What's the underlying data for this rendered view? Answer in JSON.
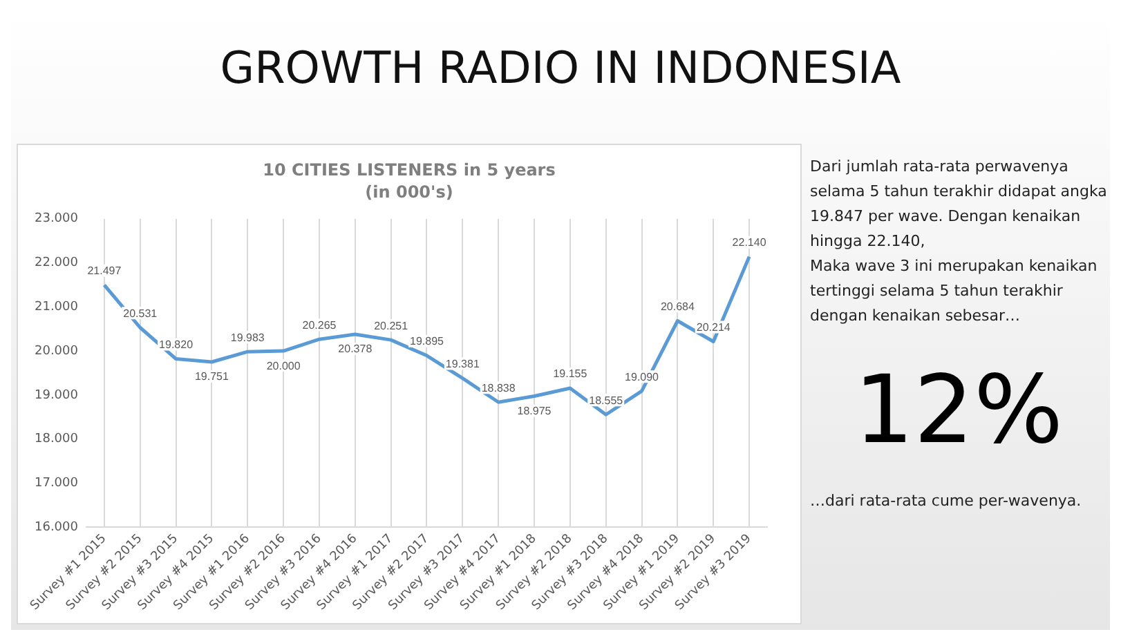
{
  "chart_data": {
    "type": "line",
    "title": "GROWTH RADIO IN INDONESIA",
    "subtitle": "10 CITIES LISTENERS in 5 years",
    "categories": [
      "Survey #1 2015",
      "Survey #2 2015",
      "Survey #3 2015",
      "Survey #4 2015",
      "Survey #1 2016",
      "Survey #2 2016",
      "Survey #3 2016",
      "Survey #4 2016",
      "Survey #1 2017",
      "Survey #2 2017",
      "Survey #3 2017",
      "Survey #4 2017",
      "Survey #1 2018",
      "Survey #2 2018",
      "Survey #3 2018",
      "Survey #4 2018",
      "Survey #1 2019",
      "Survey #2 2019",
      "Survey #3 2019"
    ],
    "series": [
      {
        "color": "#5b9bd5",
        "values": [
          21497,
          20531,
          19820,
          19751,
          19983,
          20000,
          20265,
          20378,
          20251,
          19895,
          19381,
          18838,
          18975,
          19155,
          18555,
          19090,
          20684,
          20214,
          22140
        ],
        "value_labels": [
          "21.497",
          "20.531",
          "19.820",
          "19.751",
          "19.983",
          "20.000",
          "20.265",
          "20.378",
          "20.251",
          "19.895",
          "19.381",
          "18.838",
          "18.975",
          "19.155",
          "18.555",
          "19.090",
          "20.684",
          "20.214",
          "22.140"
        ]
      }
    ],
    "ylim": [
      16000,
      23000
    ],
    "yticks": [
      {
        "value": 16000,
        "label": "16.000"
      },
      {
        "value": 17000,
        "label": "17.000"
      },
      {
        "value": 18000,
        "label": "18.000"
      },
      {
        "value": 19000,
        "label": "19.000"
      },
      {
        "value": 20000,
        "label": "20.000"
      },
      {
        "value": 21000,
        "label": "21.000"
      },
      {
        "value": 22000,
        "label": "22.000"
      },
      {
        "value": 23000,
        "label": "23.000"
      }
    ],
    "grid": "x",
    "legend": false,
    "marker": "none",
    "line_style": "solid",
    "annotations": [
      "(in 000's)",
      "Dari jumlah rata-rata perwavenya selama 5 tahun terakhir didapat angka 19.847 per wave. Dengan kenaikan hingga 22.140,",
      "Maka wave 3 ini merupakan kenaikan tertinggi selama 5 tahun terakhir dengan kenaikan sebesar…",
      "12%",
      "…dari rata-rata cume per-wavenya."
    ]
  }
}
